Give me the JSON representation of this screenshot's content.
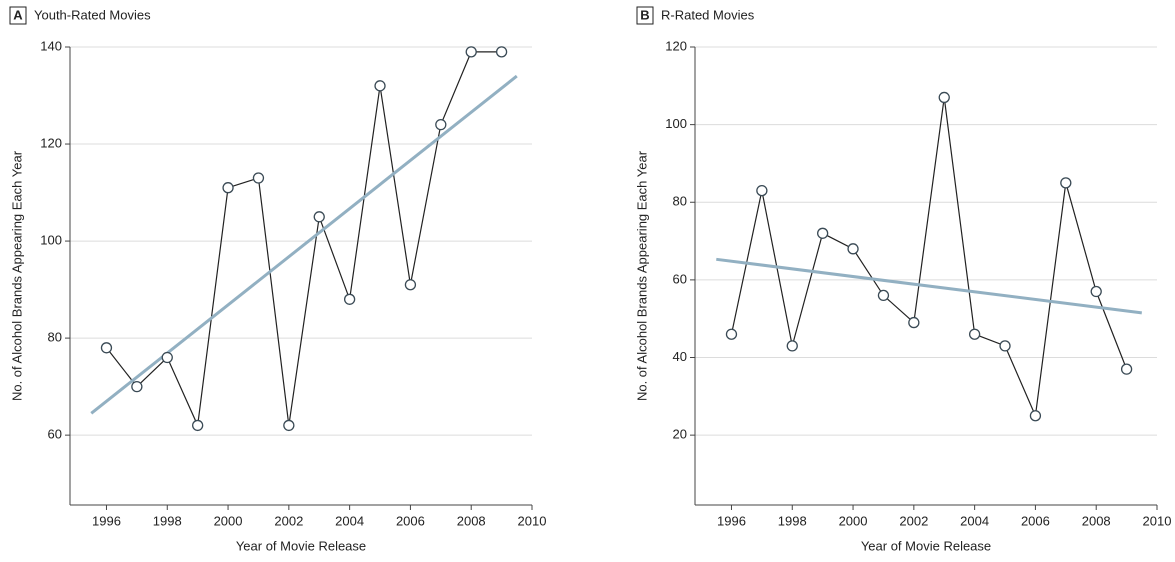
{
  "chart_data": [
    {
      "type": "line",
      "panel": "A",
      "title": "Youth-Rated Movies",
      "xlabel": "Year of Movie Release",
      "ylabel": "No. of Alcohol Brands Appearing Each Year",
      "x": [
        1996,
        1997,
        1998,
        1999,
        2000,
        2001,
        2002,
        2003,
        2004,
        2005,
        2006,
        2007,
        2008,
        2009
      ],
      "values": [
        78,
        70,
        76,
        62,
        111,
        113,
        62,
        105,
        88,
        132,
        91,
        124,
        139,
        139
      ],
      "color": "#222222",
      "fit": {
        "x": [
          1995.5,
          2009.5
        ],
        "values": [
          64.5,
          134
        ],
        "color": "#92b0c2"
      },
      "xlim": [
        1994.8,
        2010
      ],
      "xticks": [
        1996,
        1998,
        2000,
        2002,
        2004,
        2006,
        2008,
        2010
      ],
      "ylim": [
        45.6,
        140
      ],
      "yticks": [
        60,
        80,
        100,
        120,
        140
      ],
      "grid": true
    },
    {
      "type": "line",
      "panel": "B",
      "title": "R-Rated Movies",
      "xlabel": "Year of Movie Release",
      "ylabel": "No. of Alcohol Brands Appearing Each Year",
      "x": [
        1996,
        1997,
        1998,
        1999,
        2000,
        2001,
        2002,
        2003,
        2004,
        2005,
        2006,
        2007,
        2008,
        2009
      ],
      "values": [
        46,
        83,
        43,
        72,
        68,
        56,
        49,
        107,
        46,
        43,
        25,
        85,
        57,
        37
      ],
      "color": "#222222",
      "fit": {
        "x": [
          1995.5,
          2009.5
        ],
        "values": [
          65.3,
          51.5
        ],
        "color": "#92b0c2"
      },
      "xlim": [
        1994.8,
        2010
      ],
      "xticks": [
        1996,
        1998,
        2000,
        2002,
        2004,
        2006,
        2008,
        2010
      ],
      "ylim": [
        2,
        120
      ],
      "yticks": [
        20,
        40,
        60,
        80,
        100,
        120
      ],
      "grid": true
    }
  ]
}
